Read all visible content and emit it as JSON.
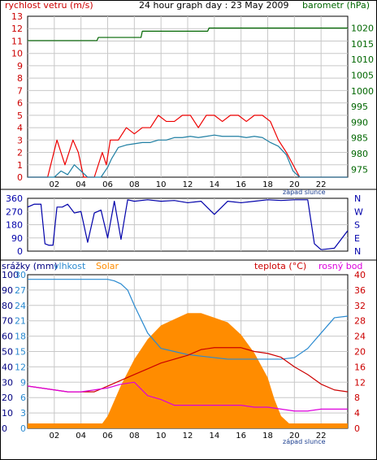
{
  "colors": {
    "wind": "#cc0000",
    "gust": "#ee0000",
    "speed": "#1f7fa3",
    "baro": "#006600",
    "dir": "#0000aa",
    "humidity": "#2a8ad0",
    "solar": "#ff8c00",
    "temp": "#cc0000",
    "dew": "#dd00dd",
    "frame": "#000000",
    "grid": "#c8c8c8"
  },
  "chart_data": [
    {
      "type": "line",
      "title": "24 hour graph day : 23 May 2009",
      "ylabel_left": "rychlost vetru (m/s)",
      "ylabel_right": "barometr (hPa)",
      "ylim_left": [
        0,
        13
      ],
      "ylim_right": [
        972.5,
        1023.75
      ],
      "y_ticks_left": [
        "0",
        "1",
        "2",
        "3",
        "4",
        "5",
        "6",
        "7",
        "8",
        "9",
        "10",
        "11",
        "12",
        "13"
      ],
      "y_ticks_right": [
        "975",
        "980",
        "985",
        "990",
        "995",
        "1000",
        "1005",
        "1010",
        "1015",
        "1020"
      ],
      "x_ticks": [
        "02",
        "04",
        "06",
        "08",
        "10",
        "12",
        "14",
        "16",
        "18",
        "20",
        "22"
      ],
      "annotation": "západ slunce",
      "series": [
        {
          "name": "gust",
          "x": [
            0,
            1.5,
            2.2,
            2.8,
            3.4,
            3.8,
            4.2,
            4.6,
            5.0,
            5.6,
            5.9,
            6.2,
            6.8,
            7.4,
            8.0,
            8.6,
            9.2,
            9.8,
            10.4,
            11.0,
            11.6,
            12.2,
            12.8,
            13.4,
            14.0,
            14.6,
            15.2,
            15.8,
            16.4,
            17.0,
            17.6,
            18.2,
            18.8,
            19.4,
            19.9,
            20.4,
            21.0,
            22.0,
            24.0
          ],
          "y": [
            0,
            0,
            3,
            1,
            3,
            2,
            0,
            0,
            0,
            2,
            1,
            3,
            3,
            4,
            3.5,
            4,
            4,
            5,
            4.5,
            4.5,
            5,
            5,
            4,
            5,
            5,
            4.5,
            5,
            5,
            4.5,
            5,
            5,
            4.5,
            3,
            2,
            1,
            0,
            0,
            0,
            0
          ]
        },
        {
          "name": "speed",
          "x": [
            0,
            2.0,
            2.5,
            3.0,
            3.5,
            4.0,
            4.5,
            5.0,
            5.5,
            6.0,
            6.3,
            6.8,
            7.4,
            8.0,
            8.6,
            9.2,
            9.8,
            10.4,
            11.0,
            11.6,
            12.2,
            12.8,
            13.4,
            14.0,
            14.6,
            15.2,
            15.8,
            16.4,
            17.0,
            17.6,
            18.2,
            18.8,
            19.4,
            19.9,
            20.4,
            21.0,
            22.0,
            24.0
          ],
          "y": [
            0,
            0,
            0.5,
            0.2,
            1,
            0.5,
            0,
            0,
            0,
            0.8,
            1.5,
            2.4,
            2.6,
            2.7,
            2.8,
            2.8,
            3,
            3,
            3.2,
            3.2,
            3.3,
            3.2,
            3.3,
            3.4,
            3.3,
            3.3,
            3.3,
            3.2,
            3.3,
            3.2,
            2.8,
            2.5,
            1.8,
            0.5,
            0,
            0,
            0,
            0
          ]
        },
        {
          "name": "barometr",
          "axis": "right",
          "x": [
            0,
            5.2,
            5.3,
            8.5,
            8.6,
            13.5,
            13.6,
            20.0,
            20.1,
            24.0
          ],
          "y": [
            1016,
            1016,
            1017,
            1017,
            1019,
            1019,
            1020,
            1020,
            1020,
            1020
          ]
        }
      ]
    },
    {
      "type": "line",
      "y_ticks": [
        "0",
        "90",
        "180",
        "270",
        "360"
      ],
      "ylim": [
        0,
        360
      ],
      "dir_labels": [
        "N",
        "W",
        "S",
        "E",
        "N"
      ],
      "x_ticks": [],
      "series": [
        {
          "name": "direction",
          "x": [
            0,
            0.5,
            1.0,
            1.3,
            1.6,
            1.9,
            2.2,
            2.6,
            3.0,
            3.5,
            4.0,
            4.5,
            5.0,
            5.5,
            6.0,
            6.5,
            7.0,
            7.5,
            8.0,
            9.0,
            10.0,
            11.0,
            12.0,
            13.0,
            14.0,
            15.0,
            16.0,
            17.0,
            18.0,
            19.0,
            20.0,
            21.0,
            21.5,
            22.0,
            22.5,
            23.0,
            24.0
          ],
          "y": [
            300,
            320,
            320,
            50,
            40,
            40,
            300,
            300,
            320,
            260,
            270,
            60,
            260,
            280,
            90,
            340,
            80,
            350,
            340,
            350,
            340,
            345,
            330,
            340,
            250,
            340,
            330,
            340,
            350,
            345,
            350,
            350,
            50,
            10,
            15,
            20,
            140
          ]
        }
      ]
    },
    {
      "type": "line",
      "legend": [
        "srážky (mm)",
        "vlhkost",
        "Solar",
        "teplota (°C)",
        "rosný bod"
      ],
      "y_ticks_left_rain": [
        "0",
        "10",
        "20",
        "30",
        "40",
        "50",
        "60",
        "70",
        "80",
        "90",
        "100"
      ],
      "y_ticks_left_humidity": [
        "0",
        "3",
        "6",
        "9",
        "12",
        "15",
        "18",
        "21",
        "24",
        "27",
        "30"
      ],
      "y_ticks_right": [
        "0",
        "4",
        "8",
        "12",
        "16",
        "20",
        "24",
        "28",
        "32",
        "36",
        "40"
      ],
      "ylim_right": [
        0,
        40
      ],
      "x_ticks": [
        "02",
        "04",
        "06",
        "08",
        "10",
        "12",
        "14",
        "16",
        "18",
        "20",
        "22"
      ],
      "annotation": "západ slunce",
      "series": [
        {
          "name": "vlhkost",
          "x": [
            0,
            6.0,
            6.5,
            7.0,
            7.5,
            8.0,
            9.0,
            10.0,
            11.0,
            12.0,
            13.0,
            14.0,
            15.0,
            16.0,
            17.0,
            18.0,
            19.0,
            20.0,
            21.0,
            22.0,
            23.0,
            24.0
          ],
          "y": [
            97,
            97,
            96,
            94,
            90,
            80,
            62,
            52,
            50,
            48,
            47,
            46,
            45,
            45,
            45,
            45,
            45,
            46,
            52,
            62,
            72,
            73
          ]
        },
        {
          "name": "Solar",
          "x": [
            0,
            4.8,
            5.5,
            6.0,
            7.0,
            8.0,
            9.0,
            10.0,
            11.0,
            12.0,
            13.0,
            14.0,
            15.0,
            16.0,
            17.0,
            18.0,
            18.5,
            19.0,
            20.0,
            24.0
          ],
          "y": [
            0,
            0,
            2,
            8,
            28,
            45,
            58,
            67,
            71,
            75,
            75,
            72,
            69,
            61,
            49,
            33,
            19,
            8,
            0,
            0
          ]
        },
        {
          "name": "teplota",
          "x": [
            0,
            1,
            2,
            3,
            4,
            5,
            6,
            7,
            8,
            9,
            10,
            11,
            12,
            13,
            14,
            15,
            16,
            17,
            18,
            19,
            20,
            21,
            22,
            23,
            24
          ],
          "y": [
            11,
            10.5,
            10,
            9.5,
            9.5,
            9.5,
            11,
            12.5,
            14,
            15.5,
            17,
            18,
            19,
            20.5,
            21,
            21,
            21,
            20,
            19.5,
            18.5,
            16,
            14,
            11.5,
            10,
            9.5
          ]
        },
        {
          "name": "rosný bod",
          "x": [
            0,
            1,
            2,
            3,
            4,
            5,
            6,
            7,
            8,
            9,
            10,
            11,
            12,
            13,
            14,
            15,
            16,
            17,
            18,
            19,
            20,
            21,
            22,
            23,
            24
          ],
          "y": [
            11,
            10.5,
            10,
            9.5,
            9.5,
            10,
            10.5,
            11.5,
            12,
            8.5,
            7.5,
            6,
            6,
            6,
            6,
            6,
            6,
            5.5,
            5.5,
            5,
            4.5,
            4.5,
            5,
            5,
            5
          ]
        }
      ]
    }
  ]
}
